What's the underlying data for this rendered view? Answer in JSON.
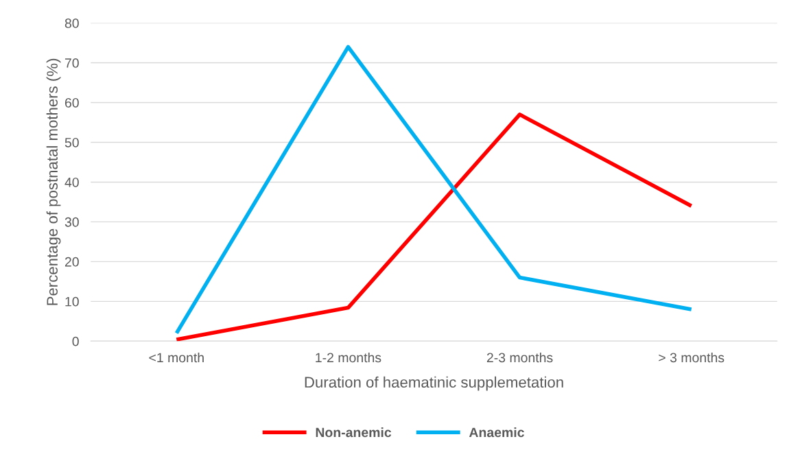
{
  "chart_data": {
    "type": "line",
    "xlabel": "Duration of haematinic supplemetation",
    "ylabel": "Percentage of postnatal mothers (%)",
    "categories": [
      "<1 month",
      "1-2 months",
      "2-3 months",
      "> 3 months"
    ],
    "series": [
      {
        "name": "Non-anemic",
        "color": "#ff0000",
        "values": [
          0.4,
          8.4,
          57,
          34
        ]
      },
      {
        "name": "Anaemic",
        "color": "#00b0f0",
        "values": [
          2,
          74,
          16,
          8
        ]
      }
    ],
    "ylim": [
      0,
      80
    ],
    "yticks": [
      0,
      10,
      20,
      30,
      40,
      50,
      60,
      70,
      80
    ],
    "grid": "y",
    "legend": "bottom",
    "marker": "none",
    "line_style": "solid"
  }
}
